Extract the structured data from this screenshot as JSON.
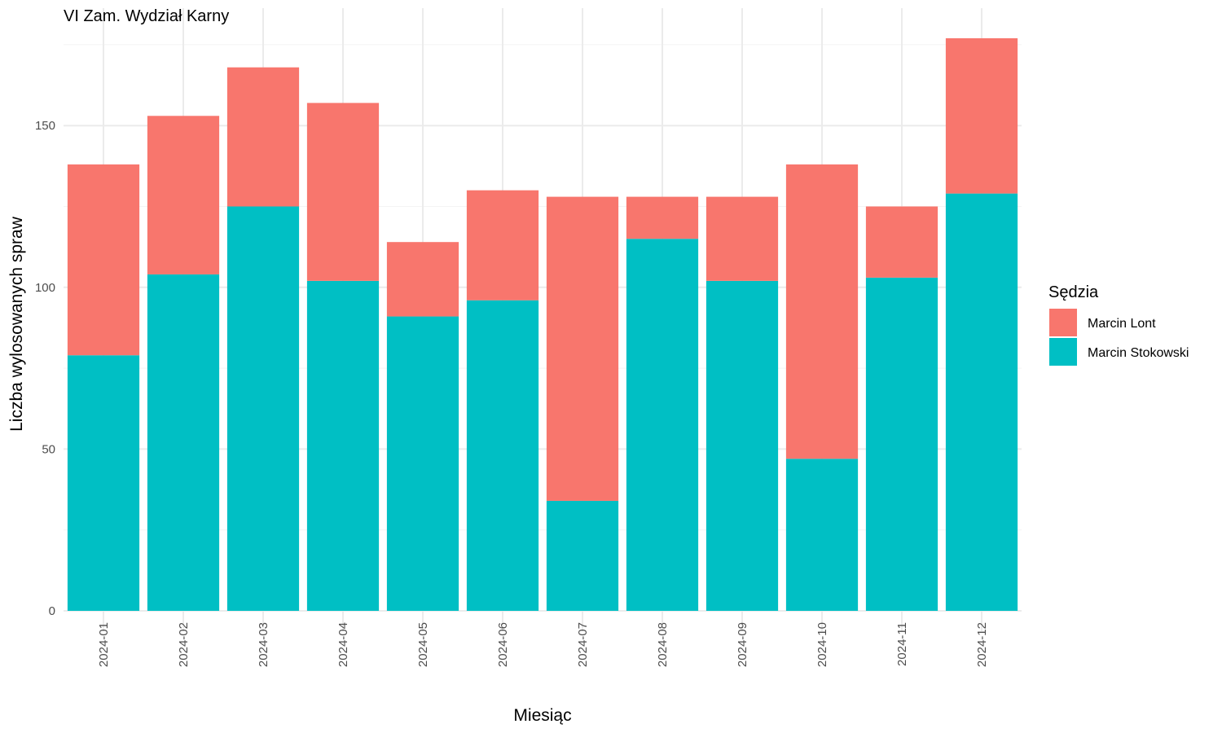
{
  "colors": {
    "background": "#ffffff",
    "grid": "#ebebeb",
    "tick_text": "#4d4d4d"
  },
  "chart_data": {
    "type": "bar",
    "stacked": true,
    "title": "VI Zam. Wydział Karny",
    "xlabel": "Miesiąc",
    "ylabel": "Liczba wylosowanych spraw",
    "categories": [
      "2024-01",
      "2024-02",
      "2024-03",
      "2024-04",
      "2024-05",
      "2024-06",
      "2024-07",
      "2024-08",
      "2024-09",
      "2024-10",
      "2024-11",
      "2024-12"
    ],
    "series": [
      {
        "name": "Marcin Stokowski",
        "color": "#00BFC4",
        "values": [
          79,
          104,
          125,
          102,
          91,
          96,
          34,
          115,
          102,
          47,
          103,
          129
        ]
      },
      {
        "name": "Marcin Lont",
        "color": "#F8766D",
        "values": [
          59,
          49,
          43,
          55,
          23,
          34,
          94,
          13,
          26,
          91,
          22,
          48
        ]
      }
    ],
    "ylim": [
      0,
      177
    ],
    "yticks": [
      0,
      50,
      100,
      150
    ],
    "grid": true,
    "legend": {
      "title": "Sędzia",
      "position": "right",
      "order": [
        "Marcin Lont",
        "Marcin Stokowski"
      ]
    }
  }
}
